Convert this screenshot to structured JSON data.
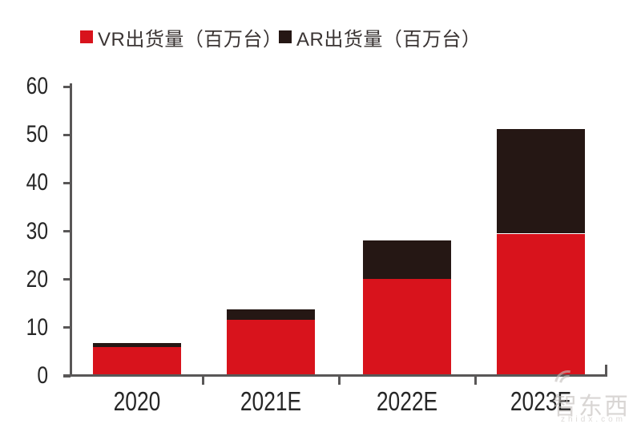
{
  "legend": [
    {
      "label": "VR出货量（百万台）",
      "color": "#d8131c"
    },
    {
      "label": "AR出货量（百万台）",
      "color": "#251714"
    }
  ],
  "axis_color": "#595757",
  "watermark": {
    "text": "智东西",
    "domain": "zhidx.com"
  },
  "chart_data": {
    "type": "bar",
    "stacked": true,
    "categories": [
      "2020",
      "2021E",
      "2022E",
      "2023E"
    ],
    "series": [
      {
        "name": "VR出货量（百万台）",
        "color": "#d8131c",
        "values": [
          6.0,
          11.7,
          20.1,
          29.5
        ]
      },
      {
        "name": "AR出货量（百万台）",
        "color": "#251714",
        "values": [
          0.8,
          2.1,
          8.0,
          21.7
        ]
      }
    ],
    "totals": [
      6.8,
      13.8,
      28.1,
      51.2
    ],
    "ylabel": "",
    "xlabel": "",
    "ylim": [
      0,
      60
    ],
    "yticks": [
      0,
      10,
      20,
      30,
      40,
      50,
      60
    ],
    "grid": false,
    "legend_position": "top"
  }
}
